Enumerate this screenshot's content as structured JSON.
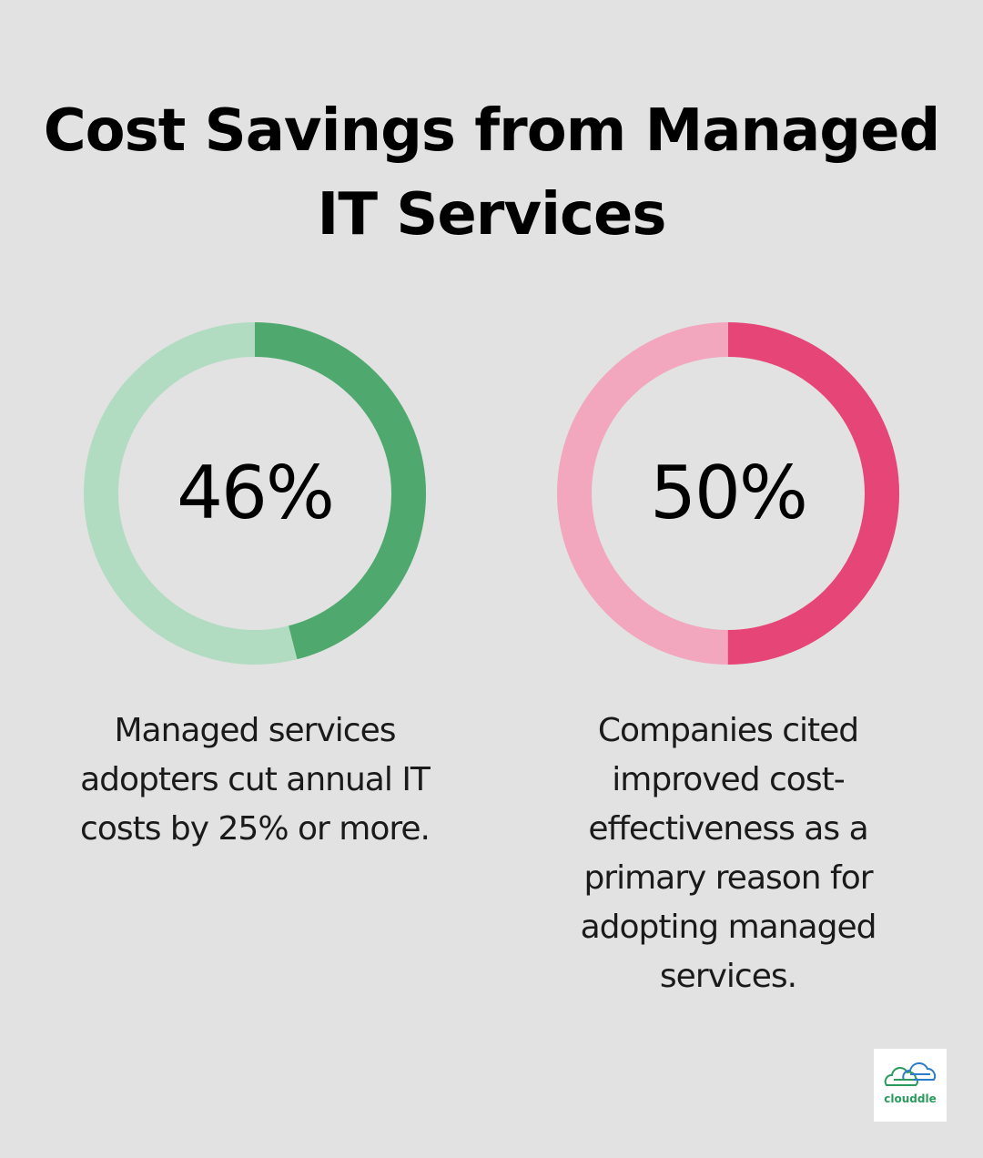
{
  "title": "Cost Savings from Managed IT Services",
  "chart_data": [
    {
      "type": "pie",
      "label": "46%",
      "value": 46,
      "description": "Managed services adopters cut annual IT costs by 25% or more.",
      "colors": {
        "filled": "#4fa96f",
        "track": "#b2dcc2"
      }
    },
    {
      "type": "pie",
      "label": "50%",
      "value": 50,
      "description": "Companies cited improved cost-effectiveness as a primary reason for adopting managed services.",
      "colors": {
        "filled": "#e64577",
        "track": "#f2a7bf"
      }
    }
  ],
  "logo": {
    "text": "clouddle",
    "icon": "cloud-icon",
    "colors": {
      "green": "#2a9a5e",
      "blue": "#2b7cc9"
    }
  }
}
